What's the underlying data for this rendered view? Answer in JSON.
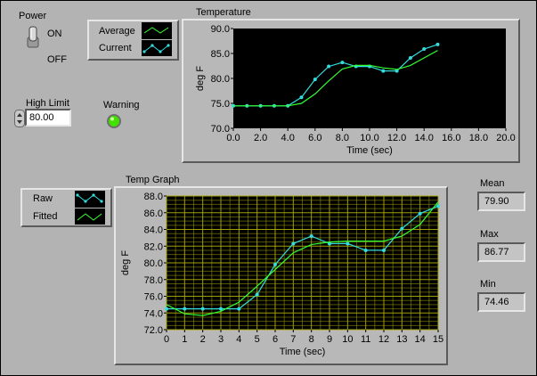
{
  "power": {
    "label": "Power",
    "on_label": "ON",
    "off_label": "OFF",
    "state": "ON"
  },
  "high_limit": {
    "label": "High Limit",
    "value": "80.00"
  },
  "warning": {
    "label": "Warning",
    "led_color": "#44e000"
  },
  "temperature_chart": {
    "title": "Temperature",
    "legend": [
      {
        "name": "Average",
        "color": "#33ff33"
      },
      {
        "name": "Current",
        "color": "#33dddd"
      }
    ]
  },
  "temp_graph": {
    "title": "Temp Graph",
    "legend": [
      {
        "name": "Raw",
        "color": "#33dddd"
      },
      {
        "name": "Fitted",
        "color": "#33ff33"
      }
    ]
  },
  "stats": {
    "mean_label": "Mean",
    "mean": "79.90",
    "max_label": "Max",
    "max": "86.77",
    "min_label": "Min",
    "min": "74.46"
  },
  "colors": {
    "plot_bg": "#000000",
    "grid": "#a8a800",
    "panel": "#b3b3b3"
  },
  "chart_data": [
    {
      "type": "line",
      "title": "Temperature",
      "xlabel": "Time (sec)",
      "ylabel": "deg F",
      "xlim": [
        0,
        20
      ],
      "ylim": [
        70,
        90
      ],
      "xticks": [
        "0.0",
        "2.0",
        "4.0",
        "6.0",
        "8.0",
        "10.0",
        "12.0",
        "14.0",
        "16.0",
        "18.0",
        "20.0"
      ],
      "yticks": [
        "70.0",
        "75.0",
        "80.0",
        "85.0",
        "90.0"
      ],
      "grid": false,
      "x": [
        0,
        1,
        2,
        3,
        4,
        5,
        6,
        7,
        8,
        9,
        10,
        11,
        12,
        13,
        14,
        15
      ],
      "series": [
        {
          "name": "Current",
          "color": "#33dddd",
          "markers": true,
          "values": [
            74.5,
            74.5,
            74.5,
            74.5,
            74.5,
            76.2,
            79.8,
            82.4,
            83.2,
            82.4,
            82.4,
            81.5,
            81.5,
            84.1,
            85.9,
            86.8
          ]
        },
        {
          "name": "Average",
          "color": "#33ff33",
          "markers": false,
          "values": [
            74.5,
            74.5,
            74.5,
            74.5,
            74.5,
            75.0,
            76.9,
            79.5,
            81.9,
            82.6,
            82.6,
            82.1,
            81.8,
            82.6,
            84.1,
            85.6
          ]
        }
      ]
    },
    {
      "type": "line",
      "title": "Temp Graph",
      "xlabel": "Time (sec)",
      "ylabel": "deg F",
      "xlim": [
        0,
        15
      ],
      "ylim": [
        72,
        88
      ],
      "xticks": [
        "0",
        "1",
        "2",
        "3",
        "4",
        "5",
        "6",
        "7",
        "8",
        "9",
        "10",
        "11",
        "12",
        "13",
        "14",
        "15"
      ],
      "yticks": [
        "72.0",
        "74.0",
        "76.0",
        "78.0",
        "80.0",
        "82.0",
        "84.0",
        "86.0",
        "88.0"
      ],
      "grid": true,
      "x": [
        0,
        1,
        2,
        3,
        4,
        5,
        6,
        7,
        8,
        9,
        10,
        11,
        12,
        13,
        14,
        15
      ],
      "series": [
        {
          "name": "Raw",
          "color": "#33dddd",
          "markers": true,
          "values": [
            74.5,
            74.5,
            74.5,
            74.5,
            74.5,
            76.2,
            79.8,
            82.3,
            83.2,
            82.3,
            82.3,
            81.5,
            81.5,
            84.1,
            85.9,
            86.8
          ]
        },
        {
          "name": "Fitted",
          "color": "#33ff33",
          "markers": false,
          "values": [
            75.0,
            73.9,
            73.7,
            74.2,
            75.3,
            77.2,
            79.2,
            81.2,
            82.2,
            82.5,
            82.6,
            82.6,
            82.6,
            83.2,
            84.6,
            87.3
          ]
        }
      ]
    }
  ]
}
